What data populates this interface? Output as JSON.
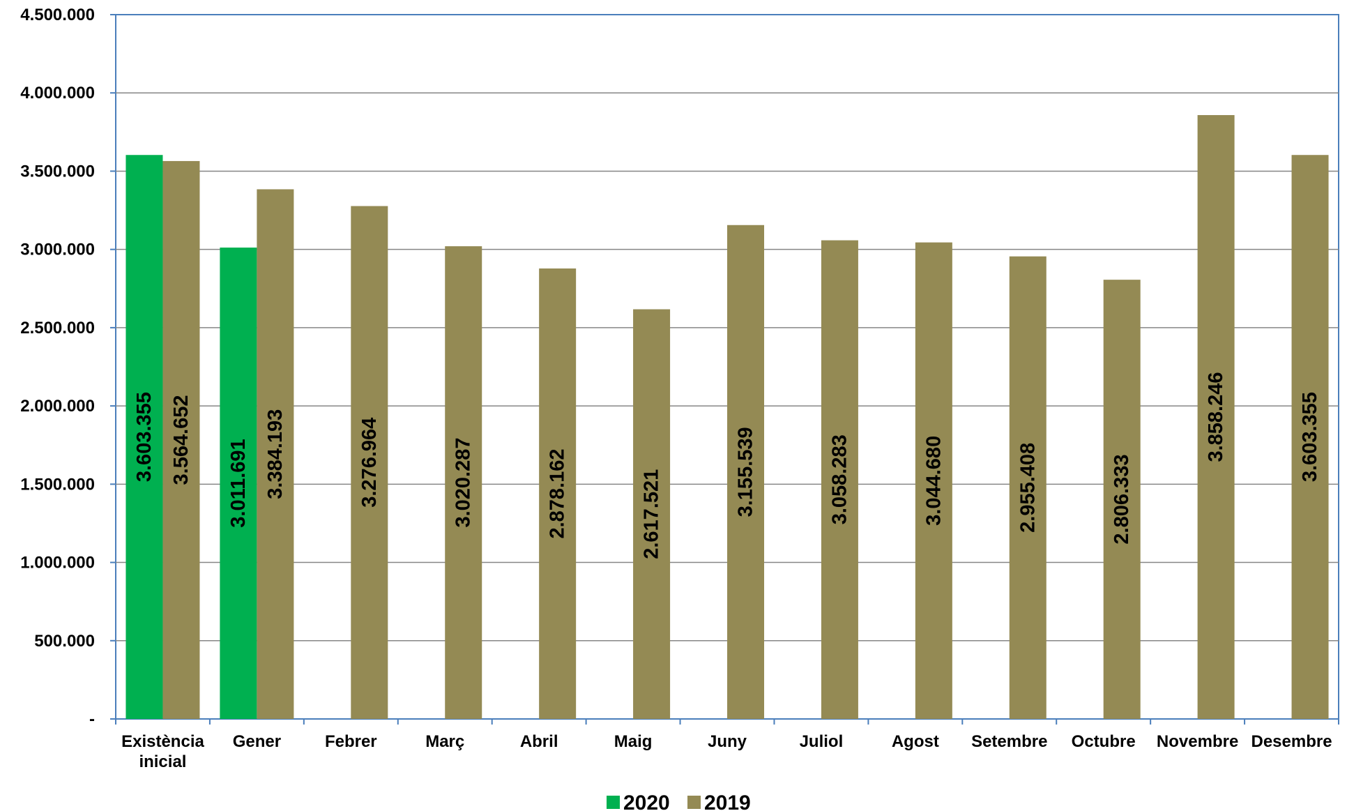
{
  "chart_data": {
    "type": "bar",
    "categories": [
      "Existència inicial",
      "Gener",
      "Febrer",
      "Març",
      "Abril",
      "Maig",
      "Juny",
      "Juliol",
      "Agost",
      "Setembre",
      "Octubre",
      "Novembre",
      "Desembre"
    ],
    "series": [
      {
        "name": "2020",
        "color": "#00b050",
        "values": [
          3603355,
          3011691,
          null,
          null,
          null,
          null,
          null,
          null,
          null,
          null,
          null,
          null,
          null
        ],
        "labels": [
          "3.603.355",
          "3.011.691",
          null,
          null,
          null,
          null,
          null,
          null,
          null,
          null,
          null,
          null,
          null
        ]
      },
      {
        "name": "2019",
        "color": "#948a54",
        "values": [
          3564652,
          3384193,
          3276964,
          3020287,
          2878162,
          2617521,
          3155539,
          3058283,
          3044680,
          2955408,
          2806333,
          3858246,
          3603355
        ],
        "labels": [
          "3.564.652",
          "3.384.193",
          "3.276.964",
          "3.020.287",
          "2.878.162",
          "2.617.521",
          "3.155.539",
          "3.058.283",
          "3.044.680",
          "2.955.408",
          "2.806.333",
          "3.858.246",
          "3.603.355"
        ]
      }
    ],
    "ylim": [
      0,
      4500000
    ],
    "yticks": [
      0,
      500000,
      1000000,
      1500000,
      2000000,
      2500000,
      3000000,
      3500000,
      4000000,
      4500000
    ],
    "ytick_labels": [
      "-",
      "500.000",
      "1.000.000",
      "1.500.000",
      "2.000.000",
      "2.500.000",
      "3.000.000",
      "3.500.000",
      "4.000.000",
      "4.500.000"
    ],
    "grid": true,
    "legend_position": "bottom-center",
    "title": "",
    "xlabel": "",
    "ylabel": ""
  }
}
